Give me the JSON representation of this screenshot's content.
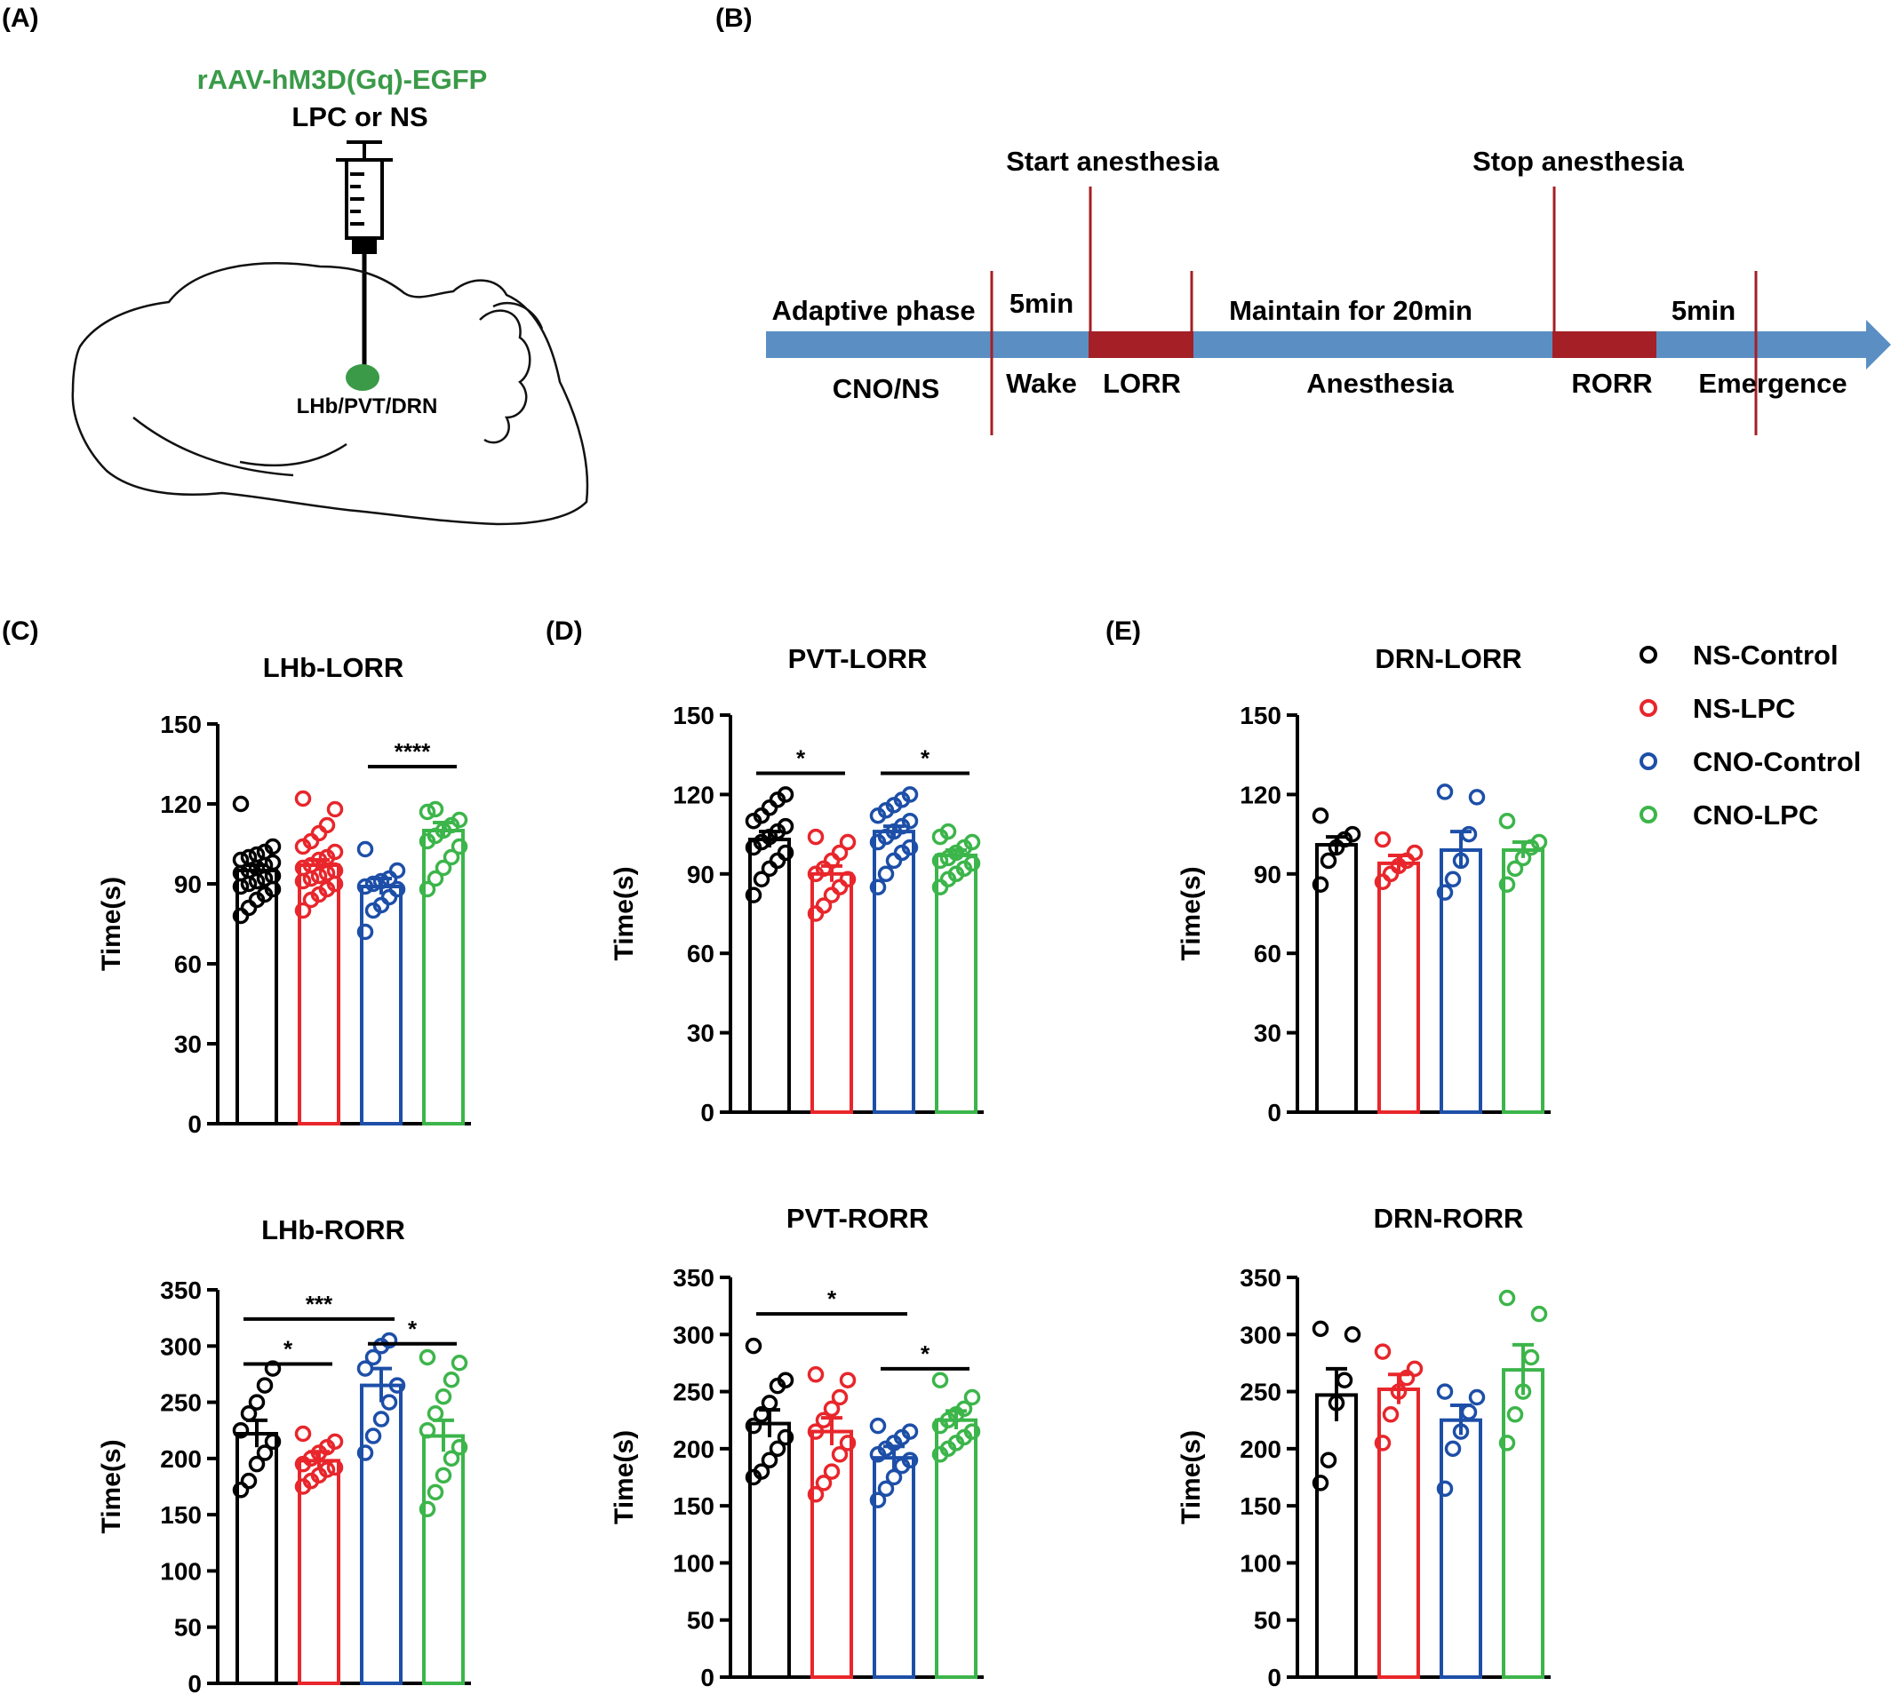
{
  "panels": {
    "A": {
      "label": "(A)",
      "virus": "rAAV-hM3D(Gq)-EGFP",
      "injection": "LPC or NS",
      "target": "LHb/PVT/DRN"
    },
    "B": {
      "label": "(B)",
      "start_label": "Start anesthesia",
      "stop_label": "Stop anesthesia",
      "segments_top": [
        "Adaptive phase",
        "5min",
        "Maintain for 20min",
        "5min"
      ],
      "segments_bottom": [
        "CNO/NS",
        "Wake",
        "LORR",
        "Anesthesia",
        "RORR",
        "Emergence"
      ]
    },
    "C": {
      "label": "(C)"
    },
    "D": {
      "label": "(D)"
    },
    "E": {
      "label": "(E)"
    }
  },
  "legend": {
    "items": [
      {
        "name": "NS-Control",
        "color": "#000000"
      },
      {
        "name": "NS-LPC",
        "color": "#e8262b"
      },
      {
        "name": "CNO-Control",
        "color": "#1d4fa8"
      },
      {
        "name": "CNO-LPC",
        "color": "#3cb54a"
      }
    ]
  },
  "colors": {
    "arrow": "#5b8fc4",
    "block": "#a41f26",
    "marker": "#a41f26",
    "brain_dot": "#3a9a48",
    "virus_text": "#3a9a48"
  },
  "chart_data": [
    {
      "id": "LHb-LORR",
      "type": "bar",
      "title": "LHb-LORR",
      "ylabel": "Time(s)",
      "ylim": [
        0,
        150
      ],
      "yticks": [
        "0",
        "30",
        "60",
        "90",
        "120",
        "150"
      ],
      "categories": [
        "NS-Control",
        "NS-LPC",
        "CNO-Control",
        "CNO-LPC"
      ],
      "values": [
        95,
        97,
        89,
        110
      ],
      "sem": [
        2,
        2,
        3,
        3
      ],
      "points": [
        [
          78,
          81,
          84,
          86,
          88,
          89,
          90,
          91,
          92,
          93,
          94,
          95,
          96,
          97,
          98,
          99,
          100,
          101,
          102,
          104,
          120
        ],
        [
          80,
          84,
          86,
          88,
          90,
          91,
          92,
          93,
          94,
          95,
          96,
          97,
          99,
          100,
          102,
          104,
          106,
          109,
          112,
          118,
          122
        ],
        [
          72,
          80,
          82,
          85,
          88,
          89,
          90,
          91,
          92,
          95,
          103
        ],
        [
          88,
          92,
          96,
          100,
          104,
          106,
          108,
          110,
          112,
          114,
          117,
          118
        ]
      ],
      "significance": [
        {
          "from": 2,
          "to": 3,
          "label": "****",
          "y": 134
        }
      ]
    },
    {
      "id": "LHb-RORR",
      "type": "bar",
      "title": "LHb-RORR",
      "ylabel": "Time(s)",
      "ylim": [
        0,
        350
      ],
      "yticks": [
        "0",
        "50",
        "100",
        "150",
        "200",
        "250",
        "300",
        "350"
      ],
      "categories": [
        "NS-Control",
        "NS-LPC",
        "CNO-Control",
        "CNO-LPC"
      ],
      "values": [
        222,
        198,
        265,
        220
      ],
      "sem": [
        12,
        8,
        15,
        14
      ],
      "points": [
        [
          172,
          180,
          195,
          205,
          215,
          225,
          240,
          250,
          265,
          280
        ],
        [
          175,
          180,
          185,
          190,
          192,
          195,
          200,
          205,
          210,
          215,
          222
        ],
        [
          205,
          220,
          235,
          250,
          265,
          280,
          290,
          300,
          305
        ],
        [
          155,
          170,
          185,
          200,
          210,
          225,
          240,
          255,
          270,
          285,
          290
        ]
      ],
      "significance": [
        {
          "from": 0,
          "to": 2,
          "label": "***",
          "y": 324
        },
        {
          "from": 0,
          "to": 1,
          "label": "*",
          "y": 284
        },
        {
          "from": 2,
          "to": 3,
          "label": "*",
          "y": 302
        }
      ]
    },
    {
      "id": "PVT-LORR",
      "type": "bar",
      "title": "PVT-LORR",
      "ylabel": "Time(s)",
      "ylim": [
        0,
        150
      ],
      "yticks": [
        "0",
        "30",
        "60",
        "90",
        "120",
        "150"
      ],
      "categories": [
        "NS-Control",
        "NS-LPC",
        "CNO-Control",
        "CNO-LPC"
      ],
      "values": [
        103,
        90,
        106,
        97
      ],
      "sem": [
        3,
        3,
        2,
        2
      ],
      "points": [
        [
          82,
          88,
          92,
          95,
          98,
          100,
          102,
          104,
          106,
          108,
          110,
          112,
          115,
          118,
          120
        ],
        [
          75,
          78,
          82,
          85,
          88,
          90,
          92,
          95,
          98,
          102,
          104
        ],
        [
          85,
          90,
          95,
          98,
          100,
          102,
          104,
          106,
          108,
          110,
          112,
          114,
          116,
          118,
          120
        ],
        [
          85,
          88,
          90,
          92,
          94,
          95,
          96,
          98,
          100,
          102,
          104,
          106
        ]
      ],
      "significance": [
        {
          "from": 0,
          "to": 1,
          "label": "*",
          "y": 128
        },
        {
          "from": 2,
          "to": 3,
          "label": "*",
          "y": 128
        }
      ]
    },
    {
      "id": "PVT-RORR",
      "type": "bar",
      "title": "PVT-RORR",
      "ylabel": "Time(s)",
      "ylim": [
        0,
        350
      ],
      "yticks": [
        "0",
        "50",
        "100",
        "150",
        "200",
        "250",
        "300",
        "350"
      ],
      "categories": [
        "NS-Control",
        "NS-LPC",
        "CNO-Control",
        "CNO-LPC"
      ],
      "values": [
        222,
        215,
        192,
        225
      ],
      "sem": [
        12,
        12,
        10,
        8
      ],
      "points": [
        [
          175,
          180,
          190,
          200,
          210,
          220,
          230,
          240,
          255,
          260,
          290
        ],
        [
          160,
          170,
          180,
          195,
          205,
          215,
          225,
          235,
          245,
          260,
          265
        ],
        [
          155,
          165,
          175,
          185,
          190,
          195,
          200,
          205,
          210,
          215,
          220
        ],
        [
          195,
          200,
          205,
          210,
          215,
          220,
          225,
          230,
          235,
          245,
          260
        ]
      ],
      "significance": [
        {
          "from": 0,
          "to": 2,
          "label": "*",
          "y": 318
        },
        {
          "from": 2,
          "to": 3,
          "label": "*",
          "y": 270
        }
      ]
    },
    {
      "id": "DRN-LORR",
      "type": "bar",
      "title": "DRN-LORR",
      "ylabel": "Time(s)",
      "ylim": [
        0,
        150
      ],
      "yticks": [
        "0",
        "30",
        "60",
        "90",
        "120",
        "150"
      ],
      "categories": [
        "NS-Control",
        "NS-LPC",
        "CNO-Control",
        "CNO-LPC"
      ],
      "values": [
        101,
        94,
        99,
        99
      ],
      "sem": [
        3,
        3,
        7,
        3
      ],
      "points": [
        [
          86,
          95,
          100,
          103,
          105,
          112
        ],
        [
          87,
          90,
          93,
          95,
          98,
          103
        ],
        [
          83,
          88,
          95,
          105,
          119,
          121
        ],
        [
          86,
          92,
          96,
          100,
          102,
          110
        ]
      ],
      "significance": []
    },
    {
      "id": "DRN-RORR",
      "type": "bar",
      "title": "DRN-RORR",
      "ylabel": "Time(s)",
      "ylim": [
        0,
        350
      ],
      "yticks": [
        "0",
        "50",
        "100",
        "150",
        "200",
        "250",
        "300",
        "350"
      ],
      "categories": [
        "NS-Control",
        "NS-LPC",
        "CNO-Control",
        "CNO-LPC"
      ],
      "values": [
        247,
        252,
        225,
        269
      ],
      "sem": [
        23,
        13,
        13,
        22
      ],
      "points": [
        [
          170,
          190,
          240,
          260,
          300,
          305
        ],
        [
          205,
          230,
          250,
          262,
          270,
          285
        ],
        [
          165,
          200,
          215,
          232,
          245,
          250
        ],
        [
          205,
          230,
          250,
          280,
          318,
          332
        ]
      ],
      "significance": []
    }
  ]
}
